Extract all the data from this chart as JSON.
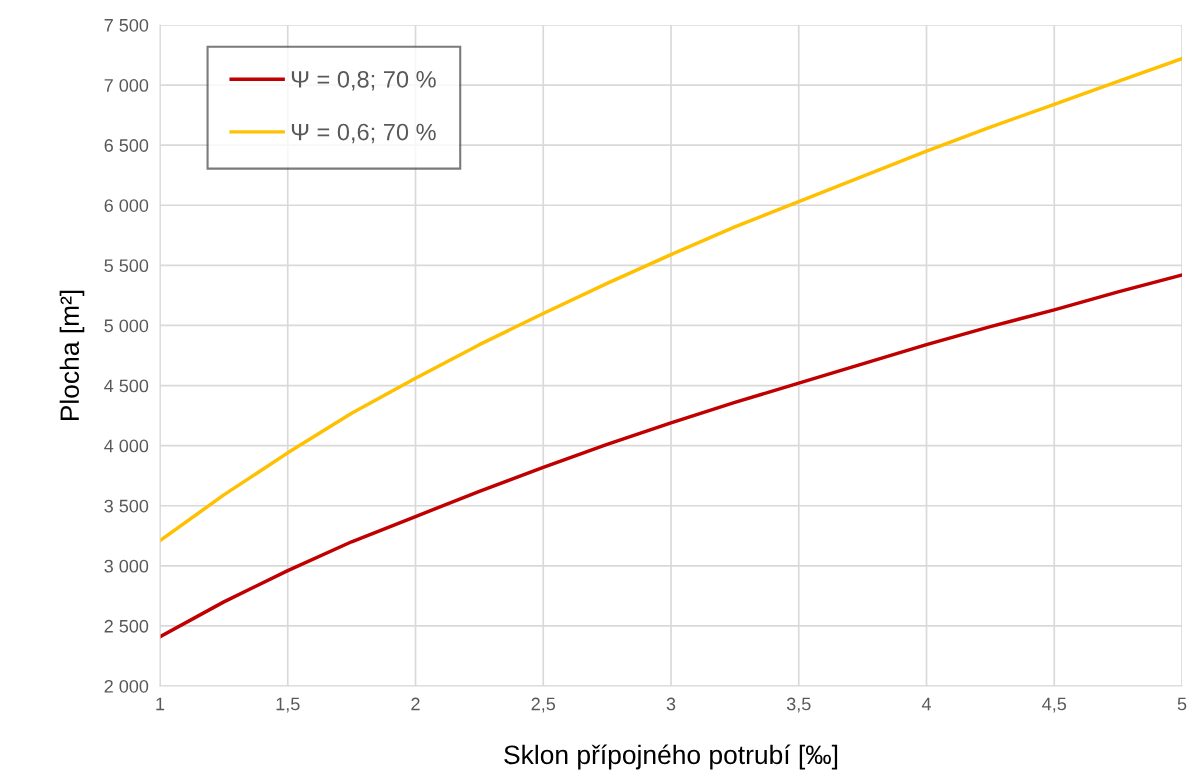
{
  "chart_data": {
    "type": "line",
    "xlabel": "Sklon přípojného potrubí [‰]",
    "ylabel": "Plocha [m²]",
    "x": [
      1,
      1.25,
      1.5,
      1.75,
      2,
      2.25,
      2.5,
      2.75,
      3,
      3.25,
      3.5,
      3.75,
      4,
      4.25,
      4.5,
      4.75,
      5
    ],
    "series": [
      {
        "name": "Ψ = 0,8; 70 %",
        "color": "#c00000",
        "values": [
          2410,
          2700,
          2960,
          3200,
          3410,
          3620,
          3820,
          4010,
          4190,
          4360,
          4520,
          4680,
          4840,
          4990,
          5130,
          5280,
          5420
        ]
      },
      {
        "name": "Ψ = 0,6; 70 %",
        "color": "#ffc000",
        "values": [
          3210,
          3590,
          3940,
          4270,
          4560,
          4840,
          5100,
          5350,
          5590,
          5820,
          6030,
          6240,
          6450,
          6650,
          6840,
          7030,
          7220
        ]
      }
    ],
    "xlim": [
      1,
      5
    ],
    "ylim": [
      2000,
      7500
    ],
    "xticks": [
      1,
      {
        "value": 1.5,
        "label": "1,5"
      },
      2,
      {
        "value": 2.5,
        "label": "2,5"
      },
      3,
      {
        "value": 3.5,
        "label": "3,5"
      },
      4,
      {
        "value": 4.5,
        "label": "4,5"
      },
      5
    ],
    "yticks": [
      {
        "value": 2000,
        "label": "2 000"
      },
      {
        "value": 2500,
        "label": "2 500"
      },
      {
        "value": 3000,
        "label": "3 000"
      },
      {
        "value": 3500,
        "label": "3 500"
      },
      {
        "value": 4000,
        "label": "4 000"
      },
      {
        "value": 4500,
        "label": "4 500"
      },
      {
        "value": 5000,
        "label": "5 000"
      },
      {
        "value": 5500,
        "label": "5 500"
      },
      {
        "value": 6000,
        "label": "6 000"
      },
      {
        "value": 6500,
        "label": "6 500"
      },
      {
        "value": 7000,
        "label": "7 000"
      },
      {
        "value": 7500,
        "label": "7 500"
      }
    ],
    "grid": true,
    "legend": "top left",
    "marker": "none",
    "line_style": "solid"
  }
}
